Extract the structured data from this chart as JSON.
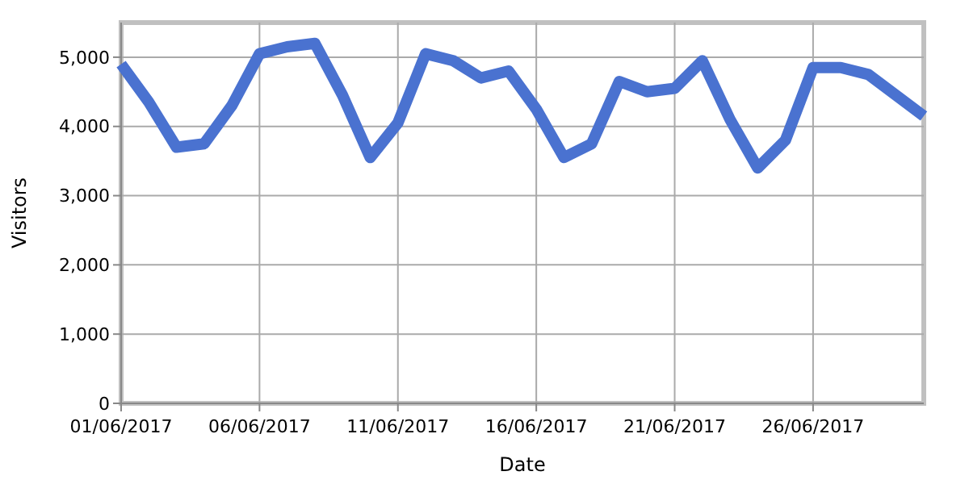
{
  "chart_data": {
    "type": "line",
    "xlabel": "Date",
    "ylabel": "Visitors",
    "x": [
      "2017-06-01",
      "2017-06-02",
      "2017-06-03",
      "2017-06-04",
      "2017-06-05",
      "2017-06-06",
      "2017-06-07",
      "2017-06-08",
      "2017-06-09",
      "2017-06-10",
      "2017-06-11",
      "2017-06-12",
      "2017-06-13",
      "2017-06-14",
      "2017-06-15",
      "2017-06-16",
      "2017-06-17",
      "2017-06-18",
      "2017-06-19",
      "2017-06-20",
      "2017-06-21",
      "2017-06-22",
      "2017-06-23",
      "2017-06-24",
      "2017-06-25",
      "2017-06-26",
      "2017-06-27",
      "2017-06-28",
      "2017-06-29",
      "2017-06-30"
    ],
    "series": [
      {
        "color": "#4a72d0",
        "values": [
          4900,
          4350,
          3700,
          3750,
          4300,
          5050,
          5150,
          5200,
          4450,
          3550,
          4050,
          5050,
          4950,
          4700,
          4800,
          4250,
          3550,
          3750,
          4650,
          4500,
          4550,
          4950,
          4100,
          3400,
          3800,
          4850,
          4850,
          4750,
          4450,
          4150
        ]
      }
    ],
    "xlim": [
      "2017-06-01",
      "2017-06-30"
    ],
    "xticks": [
      {
        "value": "2017-06-01",
        "label": "01/06/2017"
      },
      {
        "value": "2017-06-06",
        "label": "06/06/2017"
      },
      {
        "value": "2017-06-11",
        "label": "11/06/2017"
      },
      {
        "value": "2017-06-16",
        "label": "16/06/2017"
      },
      {
        "value": "2017-06-21",
        "label": "21/06/2017"
      },
      {
        "value": "2017-06-26",
        "label": "26/06/2017"
      }
    ],
    "ylim": [
      0,
      5500
    ],
    "yticks": [
      0,
      {
        "value": 1000,
        "label": "1,000"
      },
      {
        "value": 2000,
        "label": "2,000"
      },
      {
        "value": 3000,
        "label": "3,000"
      },
      {
        "value": 4000,
        "label": "4,000"
      },
      {
        "value": 5000,
        "label": "5,000"
      }
    ],
    "grid": true,
    "marker": "none",
    "line_style": "solid"
  }
}
